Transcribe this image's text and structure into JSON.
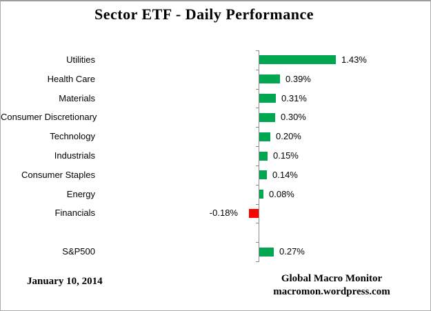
{
  "title": "Sector ETF - Daily Performance",
  "footer": {
    "date": "January 10, 2014",
    "source_name": "Global Macro Monitor",
    "source_url": "macromon.wordpress.com"
  },
  "chart_data": {
    "type": "bar",
    "orientation": "horizontal",
    "title": "Sector ETF - Daily Performance",
    "categories": [
      "Utilities",
      "Health Care",
      "Materials",
      "Consumer Discretionary",
      "Technology",
      "Industrials",
      "Consumer Staples",
      "Energy",
      "Financials",
      "",
      "S&P500"
    ],
    "values": [
      1.43,
      0.39,
      0.31,
      0.3,
      0.2,
      0.15,
      0.14,
      0.08,
      -0.18,
      null,
      0.27
    ],
    "data_labels": [
      "1.43%",
      "0.39%",
      "0.31%",
      "0.30%",
      "0.20%",
      "0.15%",
      "0.14%",
      "0.08%",
      "-0.18%",
      "",
      "0.27%"
    ],
    "unit": "%",
    "xlim": [
      -3,
      3
    ],
    "gridlines": false,
    "legend": false,
    "colors": {
      "positive": "#00A650",
      "negative": "#FF0000",
      "axis": "#898989"
    }
  }
}
